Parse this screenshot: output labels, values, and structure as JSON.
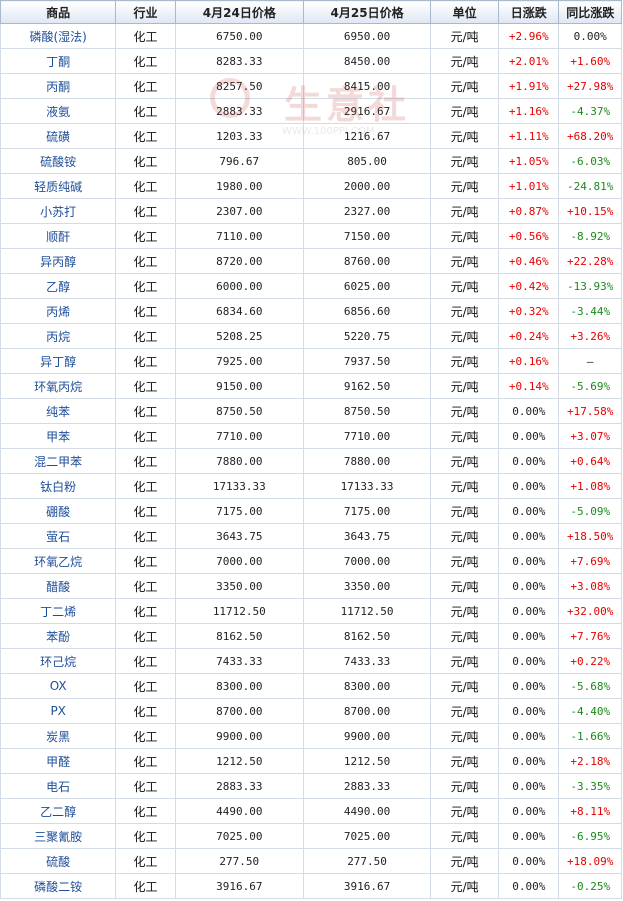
{
  "table": {
    "headers": [
      "商品",
      "行业",
      "4月24日价格",
      "4月25日价格",
      "单位",
      "日涨跌",
      "同比涨跌"
    ],
    "rows": [
      {
        "name": "磷酸(湿法)",
        "industry": "化工",
        "p1": "6750.00",
        "p2": "6950.00",
        "unit": "元/吨",
        "day": "+2.96%",
        "yoy": "0.00%"
      },
      {
        "name": "丁酮",
        "industry": "化工",
        "p1": "8283.33",
        "p2": "8450.00",
        "unit": "元/吨",
        "day": "+2.01%",
        "yoy": "+1.60%"
      },
      {
        "name": "丙酮",
        "industry": "化工",
        "p1": "8257.50",
        "p2": "8415.00",
        "unit": "元/吨",
        "day": "+1.91%",
        "yoy": "+27.98%"
      },
      {
        "name": "液氨",
        "industry": "化工",
        "p1": "2883.33",
        "p2": "2916.67",
        "unit": "元/吨",
        "day": "+1.16%",
        "yoy": "-4.37%"
      },
      {
        "name": "硫磺",
        "industry": "化工",
        "p1": "1203.33",
        "p2": "1216.67",
        "unit": "元/吨",
        "day": "+1.11%",
        "yoy": "+68.20%"
      },
      {
        "name": "硫酸铵",
        "industry": "化工",
        "p1": "796.67",
        "p2": "805.00",
        "unit": "元/吨",
        "day": "+1.05%",
        "yoy": "-6.03%"
      },
      {
        "name": "轻质纯碱",
        "industry": "化工",
        "p1": "1980.00",
        "p2": "2000.00",
        "unit": "元/吨",
        "day": "+1.01%",
        "yoy": "-24.81%"
      },
      {
        "name": "小苏打",
        "industry": "化工",
        "p1": "2307.00",
        "p2": "2327.00",
        "unit": "元/吨",
        "day": "+0.87%",
        "yoy": "+10.15%"
      },
      {
        "name": "顺酐",
        "industry": "化工",
        "p1": "7110.00",
        "p2": "7150.00",
        "unit": "元/吨",
        "day": "+0.56%",
        "yoy": "-8.92%"
      },
      {
        "name": "异丙醇",
        "industry": "化工",
        "p1": "8720.00",
        "p2": "8760.00",
        "unit": "元/吨",
        "day": "+0.46%",
        "yoy": "+22.28%"
      },
      {
        "name": "乙醇",
        "industry": "化工",
        "p1": "6000.00",
        "p2": "6025.00",
        "unit": "元/吨",
        "day": "+0.42%",
        "yoy": "-13.93%"
      },
      {
        "name": "丙烯",
        "industry": "化工",
        "p1": "6834.60",
        "p2": "6856.60",
        "unit": "元/吨",
        "day": "+0.32%",
        "yoy": "-3.44%"
      },
      {
        "name": "丙烷",
        "industry": "化工",
        "p1": "5208.25",
        "p2": "5220.75",
        "unit": "元/吨",
        "day": "+0.24%",
        "yoy": "+3.26%"
      },
      {
        "name": "异丁醇",
        "industry": "化工",
        "p1": "7925.00",
        "p2": "7937.50",
        "unit": "元/吨",
        "day": "+0.16%",
        "yoy": "—"
      },
      {
        "name": "环氧丙烷",
        "industry": "化工",
        "p1": "9150.00",
        "p2": "9162.50",
        "unit": "元/吨",
        "day": "+0.14%",
        "yoy": "-5.69%"
      },
      {
        "name": "纯苯",
        "industry": "化工",
        "p1": "8750.50",
        "p2": "8750.50",
        "unit": "元/吨",
        "day": "0.00%",
        "yoy": "+17.58%"
      },
      {
        "name": "甲苯",
        "industry": "化工",
        "p1": "7710.00",
        "p2": "7710.00",
        "unit": "元/吨",
        "day": "0.00%",
        "yoy": "+3.07%"
      },
      {
        "name": "混二甲苯",
        "industry": "化工",
        "p1": "7880.00",
        "p2": "7880.00",
        "unit": "元/吨",
        "day": "0.00%",
        "yoy": "+0.64%"
      },
      {
        "name": "钛白粉",
        "industry": "化工",
        "p1": "17133.33",
        "p2": "17133.33",
        "unit": "元/吨",
        "day": "0.00%",
        "yoy": "+1.08%"
      },
      {
        "name": "硼酸",
        "industry": "化工",
        "p1": "7175.00",
        "p2": "7175.00",
        "unit": "元/吨",
        "day": "0.00%",
        "yoy": "-5.09%"
      },
      {
        "name": "萤石",
        "industry": "化工",
        "p1": "3643.75",
        "p2": "3643.75",
        "unit": "元/吨",
        "day": "0.00%",
        "yoy": "+18.50%"
      },
      {
        "name": "环氧乙烷",
        "industry": "化工",
        "p1": "7000.00",
        "p2": "7000.00",
        "unit": "元/吨",
        "day": "0.00%",
        "yoy": "+7.69%"
      },
      {
        "name": "醋酸",
        "industry": "化工",
        "p1": "3350.00",
        "p2": "3350.00",
        "unit": "元/吨",
        "day": "0.00%",
        "yoy": "+3.08%"
      },
      {
        "name": "丁二烯",
        "industry": "化工",
        "p1": "11712.50",
        "p2": "11712.50",
        "unit": "元/吨",
        "day": "0.00%",
        "yoy": "+32.00%"
      },
      {
        "name": "苯酚",
        "industry": "化工",
        "p1": "8162.50",
        "p2": "8162.50",
        "unit": "元/吨",
        "day": "0.00%",
        "yoy": "+7.76%"
      },
      {
        "name": "环己烷",
        "industry": "化工",
        "p1": "7433.33",
        "p2": "7433.33",
        "unit": "元/吨",
        "day": "0.00%",
        "yoy": "+0.22%"
      },
      {
        "name": "OX",
        "industry": "化工",
        "p1": "8300.00",
        "p2": "8300.00",
        "unit": "元/吨",
        "day": "0.00%",
        "yoy": "-5.68%"
      },
      {
        "name": "PX",
        "industry": "化工",
        "p1": "8700.00",
        "p2": "8700.00",
        "unit": "元/吨",
        "day": "0.00%",
        "yoy": "-4.40%"
      },
      {
        "name": "炭黑",
        "industry": "化工",
        "p1": "9900.00",
        "p2": "9900.00",
        "unit": "元/吨",
        "day": "0.00%",
        "yoy": "-1.66%"
      },
      {
        "name": "甲醛",
        "industry": "化工",
        "p1": "1212.50",
        "p2": "1212.50",
        "unit": "元/吨",
        "day": "0.00%",
        "yoy": "+2.18%"
      },
      {
        "name": "电石",
        "industry": "化工",
        "p1": "2883.33",
        "p2": "2883.33",
        "unit": "元/吨",
        "day": "0.00%",
        "yoy": "-3.35%"
      },
      {
        "name": "乙二醇",
        "industry": "化工",
        "p1": "4490.00",
        "p2": "4490.00",
        "unit": "元/吨",
        "day": "0.00%",
        "yoy": "+8.11%"
      },
      {
        "name": "三聚氰胺",
        "industry": "化工",
        "p1": "7025.00",
        "p2": "7025.00",
        "unit": "元/吨",
        "day": "0.00%",
        "yoy": "-6.95%"
      },
      {
        "name": "硫酸",
        "industry": "化工",
        "p1": "277.50",
        "p2": "277.50",
        "unit": "元/吨",
        "day": "0.00%",
        "yoy": "+18.09%"
      },
      {
        "name": "磷酸二铵",
        "industry": "化工",
        "p1": "3916.67",
        "p2": "3916.67",
        "unit": "元/吨",
        "day": "0.00%",
        "yoy": "-0.25%"
      }
    ]
  },
  "watermark": {
    "text": "生意社",
    "url": "WWW.100PPI.COM"
  },
  "colors": {
    "up": "#e60000",
    "down": "#1b8a1b",
    "flat": "#222222",
    "name_link": "#1f4e99",
    "header_border": "#aab8cc"
  }
}
